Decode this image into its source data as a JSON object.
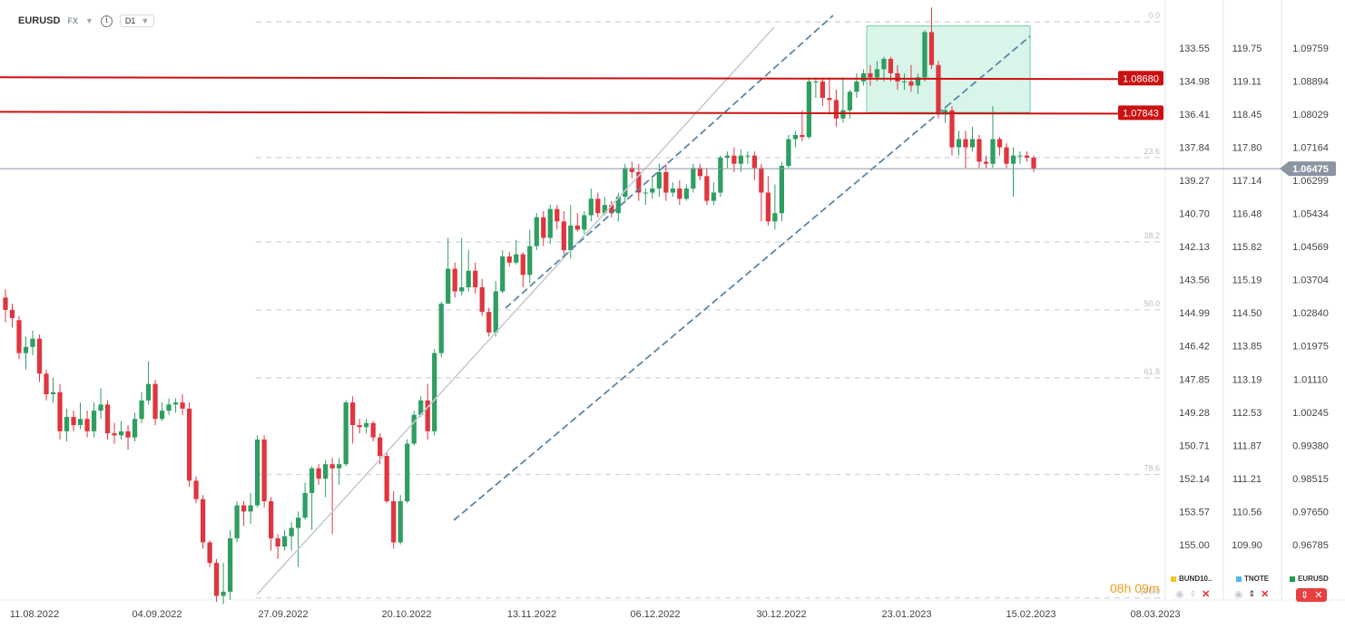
{
  "toolbar": {
    "symbol": "EURUSD",
    "market": "FX",
    "timeframe": "D1"
  },
  "chart_data": {
    "type": "candlestick",
    "symbol": "EURUSD",
    "timeframe": "D1",
    "ylim": [
      0.96,
      1.1025
    ],
    "y_ticks": [
      "1.09759",
      "1.08894",
      "1.08029",
      "1.07164",
      "1.06299",
      "1.05434",
      "1.04569",
      "1.03704",
      "1.02840",
      "1.01975",
      "1.01110",
      "1.00245",
      "0.99380",
      "0.98515",
      "0.97650",
      "0.96785"
    ],
    "ticks_secondary": [
      "119.75",
      "119.11",
      "118.45",
      "117.80",
      "117.14",
      "116.48",
      "115.82",
      "115.19",
      "114.50",
      "113.85",
      "113.19",
      "112.53",
      "111.87",
      "111.21",
      "110.56",
      "109.90"
    ],
    "ticks_tertiary": [
      "133.55",
      "134.98",
      "136.41",
      "137.84",
      "139.27",
      "140.70",
      "142.13",
      "143.56",
      "144.99",
      "146.42",
      "147.85",
      "149.28",
      "150.71",
      "152.14",
      "153.57",
      "155.00"
    ],
    "x_labels": [
      "11.08.2022",
      "04.09.2022",
      "27.09.2022",
      "20.10.2022",
      "13.11.2022",
      "06.12.2022",
      "30.12.2022",
      "23.01.2023",
      "15.02.2023",
      "08.03.2023"
    ],
    "last_price": "1.06475",
    "current_price": 1.0648,
    "horizontal_levels": [
      {
        "label": "1.08680",
        "value": 1.0868,
        "color": "#cc1010"
      },
      {
        "label": "1.07843",
        "value": 1.0784,
        "color": "#cc1010"
      }
    ],
    "fib_levels": [
      {
        "label": "0.0",
        "value": 1.1005
      },
      {
        "label": "23.6",
        "value": 1.0675
      },
      {
        "label": "38.2",
        "value": 1.047
      },
      {
        "label": "50.0",
        "value": 1.0305
      },
      {
        "label": "61.8",
        "value": 1.014
      },
      {
        "label": "78.6",
        "value": 0.9905
      },
      {
        "label": "100.0",
        "value": 0.9605
      }
    ],
    "candles": [
      [
        1.0335,
        1.0305,
        1.0355,
        1.0275
      ],
      [
        1.0305,
        1.0285,
        1.032,
        1.0262
      ],
      [
        1.028,
        1.02,
        1.029,
        1.0185
      ],
      [
        1.02,
        1.0215,
        1.024,
        1.016
      ],
      [
        1.0215,
        1.0235,
        1.0255,
        1.0195
      ],
      [
        1.0235,
        1.015,
        1.0245,
        1.013
      ],
      [
        1.015,
        1.01,
        1.016,
        1.0085
      ],
      [
        1.01,
        1.0105,
        1.014,
        1.008
      ],
      [
        1.0105,
        1.001,
        1.0125,
        0.999
      ],
      [
        1.001,
        1.0045,
        1.0065,
        0.9985
      ],
      [
        1.0045,
        1.0025,
        1.006,
        1.001
      ],
      [
        1.0025,
        1.004,
        1.008,
        1.0015
      ],
      [
        1.004,
        1.001,
        1.006,
        0.9995
      ],
      [
        1.001,
        1.006,
        1.008,
        0.9995
      ],
      [
        1.006,
        1.0075,
        1.0115,
        1.004
      ],
      [
        1.0075,
        1.0005,
        1.0085,
        0.999
      ],
      [
        1.0005,
        1.0,
        1.003,
        0.998
      ],
      [
        1.0,
        1.001,
        1.0035,
        0.999
      ],
      [
        1.001,
        0.9995,
        1.0025,
        0.9965
      ],
      [
        0.9995,
        1.004,
        1.0055,
        0.9985
      ],
      [
        1.004,
        1.0085,
        1.0105,
        1.003
      ],
      [
        1.0085,
        1.0125,
        1.018,
        1.0075
      ],
      [
        1.0125,
        1.004,
        1.0135,
        1.0025
      ],
      [
        1.004,
        1.006,
        1.008,
        1.0035
      ],
      [
        1.006,
        1.0075,
        1.009,
        1.005
      ],
      [
        1.0075,
        1.008,
        1.009,
        1.0055
      ],
      [
        1.008,
        1.0065,
        1.01,
        1.005
      ],
      [
        1.0065,
        0.989,
        1.008,
        0.9875
      ],
      [
        0.989,
        0.9845,
        0.99,
        0.9835
      ],
      [
        0.9845,
        0.974,
        0.9855,
        0.9725
      ],
      [
        0.974,
        0.969,
        0.9745,
        0.968
      ],
      [
        0.969,
        0.961,
        0.97,
        0.9595
      ],
      [
        0.961,
        0.962,
        0.969,
        0.959
      ],
      [
        0.962,
        0.975,
        0.977,
        0.96
      ],
      [
        0.975,
        0.983,
        0.984,
        0.974
      ],
      [
        0.983,
        0.9815,
        0.984,
        0.978
      ],
      [
        0.9815,
        0.983,
        0.986,
        0.9785
      ],
      [
        0.983,
        0.999,
        1.0,
        0.9825
      ],
      [
        0.999,
        0.984,
        1.0,
        0.9825
      ],
      [
        0.984,
        0.975,
        0.985,
        0.972
      ],
      [
        0.975,
        0.973,
        0.976,
        0.97
      ],
      [
        0.973,
        0.9755,
        0.977,
        0.972
      ],
      [
        0.9755,
        0.9775,
        0.979,
        0.972
      ],
      [
        0.9775,
        0.98,
        0.9815,
        0.968
      ],
      [
        0.98,
        0.986,
        0.9885,
        0.9795
      ],
      [
        0.986,
        0.992,
        0.9925,
        0.977
      ],
      [
        0.992,
        0.9895,
        0.993,
        0.988
      ],
      [
        0.9895,
        0.993,
        0.994,
        0.985
      ],
      [
        0.993,
        0.992,
        0.9945,
        0.976
      ],
      [
        0.992,
        0.993,
        0.9945,
        0.988
      ],
      [
        0.993,
        1.008,
        1.0085,
        0.9925
      ],
      [
        1.008,
        1.0025,
        1.0095,
        0.998
      ],
      [
        1.0025,
        1.002,
        1.004,
        1.0005
      ],
      [
        1.002,
        1.003,
        1.004,
        1.0005
      ],
      [
        1.003,
        0.9995,
        1.0035,
        0.9985
      ],
      [
        0.9995,
        0.995,
        1.0005,
        0.993
      ],
      [
        0.995,
        0.984,
        0.996,
        0.9835
      ],
      [
        0.984,
        0.974,
        0.9865,
        0.9725
      ],
      [
        0.974,
        0.984,
        0.9855,
        0.9735
      ],
      [
        0.984,
        0.998,
        0.999,
        0.9835
      ],
      [
        0.998,
        1.005,
        1.006,
        0.9975
      ],
      [
        1.005,
        1.0085,
        1.0095,
        1.0045
      ],
      [
        1.0085,
        1.001,
        1.0125,
        0.999
      ],
      [
        1.001,
        1.02,
        1.021,
        1.0
      ],
      [
        1.02,
        1.032,
        1.0325,
        1.019
      ],
      [
        1.032,
        1.0405,
        1.048,
        1.039
      ],
      [
        1.0405,
        1.035,
        1.042,
        1.0335
      ],
      [
        1.035,
        1.036,
        1.048,
        1.034
      ],
      [
        1.036,
        1.04,
        1.045,
        1.035
      ],
      [
        1.04,
        1.036,
        1.042,
        1.0345
      ],
      [
        1.036,
        1.03,
        1.038,
        1.029
      ],
      [
        1.03,
        1.025,
        1.031,
        1.024
      ],
      [
        1.025,
        1.035,
        1.0375,
        1.024
      ],
      [
        1.035,
        1.0435,
        1.045,
        1.0345
      ],
      [
        1.0435,
        1.042,
        1.0445,
        1.041
      ],
      [
        1.042,
        1.044,
        1.0475,
        1.0415
      ],
      [
        1.044,
        1.039,
        1.0445,
        1.036
      ],
      [
        1.039,
        1.046,
        1.05,
        1.037
      ],
      [
        1.046,
        1.053,
        1.054,
        1.045
      ],
      [
        1.053,
        1.048,
        1.0545,
        1.046
      ],
      [
        1.048,
        1.055,
        1.056,
        1.0465
      ],
      [
        1.055,
        1.052,
        1.056,
        1.05
      ],
      [
        1.052,
        1.045,
        1.0545,
        1.044
      ],
      [
        1.045,
        1.051,
        1.056,
        1.043
      ],
      [
        1.051,
        1.05,
        1.054,
        1.0495
      ],
      [
        1.05,
        1.0535,
        1.0545,
        1.049
      ],
      [
        1.0535,
        1.0575,
        1.06,
        1.052
      ],
      [
        1.0575,
        1.054,
        1.059,
        1.053
      ],
      [
        1.054,
        1.056,
        1.058,
        1.0535
      ],
      [
        1.056,
        1.054,
        1.057,
        1.053
      ],
      [
        1.054,
        1.058,
        1.059,
        1.052
      ],
      [
        1.058,
        1.065,
        1.066,
        1.0565
      ],
      [
        1.065,
        1.064,
        1.0665,
        1.0625
      ],
      [
        1.064,
        1.059,
        1.066,
        1.057
      ],
      [
        1.059,
        1.059,
        1.06,
        1.056
      ],
      [
        1.059,
        1.06,
        1.0625,
        1.0575
      ],
      [
        1.06,
        1.064,
        1.066,
        1.058
      ],
      [
        1.064,
        1.059,
        1.066,
        1.057
      ],
      [
        1.059,
        1.06,
        1.0615,
        1.058
      ],
      [
        1.06,
        1.0575,
        1.062,
        1.056
      ],
      [
        1.0575,
        1.06,
        1.061,
        1.057
      ],
      [
        1.06,
        1.065,
        1.066,
        1.059
      ],
      [
        1.065,
        1.063,
        1.066,
        1.062
      ],
      [
        1.063,
        1.057,
        1.065,
        1.056
      ],
      [
        1.057,
        1.059,
        1.0615,
        1.056
      ],
      [
        1.059,
        1.0675,
        1.068,
        1.058
      ],
      [
        1.0675,
        1.068,
        1.069,
        1.065
      ],
      [
        1.068,
        1.066,
        1.07,
        1.064
      ],
      [
        1.066,
        1.068,
        1.0695,
        1.064
      ],
      [
        1.068,
        1.068,
        1.069,
        1.066
      ],
      [
        1.068,
        1.065,
        1.069,
        1.062
      ],
      [
        1.065,
        1.059,
        1.066,
        1.052
      ],
      [
        1.059,
        1.052,
        1.063,
        1.051
      ],
      [
        1.052,
        1.054,
        1.061,
        1.05
      ],
      [
        1.054,
        1.0655,
        1.0665,
        1.052
      ],
      [
        1.0655,
        1.072,
        1.073,
        1.065
      ],
      [
        1.072,
        1.073,
        1.074,
        1.07
      ],
      [
        1.073,
        1.0725,
        1.079,
        1.0715
      ],
      [
        1.0725,
        1.086,
        1.087,
        1.072
      ],
      [
        1.086,
        1.086,
        1.087,
        1.082
      ],
      [
        1.086,
        1.082,
        1.087,
        1.08
      ],
      [
        1.082,
        1.0815,
        1.087,
        1.078
      ],
      [
        1.0815,
        1.077,
        1.084,
        1.075
      ],
      [
        1.077,
        1.079,
        1.087,
        1.076
      ],
      [
        1.079,
        1.0835,
        1.084,
        1.077
      ],
      [
        1.0835,
        1.086,
        1.088,
        1.082
      ],
      [
        1.086,
        1.088,
        1.089,
        1.085
      ],
      [
        1.088,
        1.087,
        1.09,
        1.085
      ],
      [
        1.087,
        1.089,
        1.091,
        1.086
      ],
      [
        1.089,
        1.0915,
        1.092,
        1.086
      ],
      [
        1.0915,
        1.088,
        1.092,
        1.086
      ],
      [
        1.088,
        1.086,
        1.09,
        1.084
      ],
      [
        1.086,
        1.086,
        1.088,
        1.084
      ],
      [
        1.086,
        1.085,
        1.09,
        1.0835
      ],
      [
        1.085,
        1.087,
        1.088,
        1.083
      ],
      [
        1.087,
        1.098,
        1.0985,
        1.086
      ],
      [
        1.098,
        1.09,
        1.104,
        1.089
      ],
      [
        1.09,
        1.078,
        1.091,
        1.077
      ],
      [
        1.078,
        1.079,
        1.08,
        1.076
      ],
      [
        1.079,
        1.07,
        1.08,
        1.068
      ],
      [
        1.07,
        1.072,
        1.074,
        1.068
      ],
      [
        1.072,
        1.07,
        1.074,
        1.065
      ],
      [
        1.07,
        1.072,
        1.075,
        1.069
      ],
      [
        1.072,
        1.0665,
        1.073,
        1.065
      ],
      [
        1.0665,
        1.066,
        1.068,
        1.065
      ],
      [
        1.066,
        1.072,
        1.08,
        1.065
      ],
      [
        1.072,
        1.07,
        1.0725,
        1.068
      ],
      [
        1.07,
        1.066,
        1.071,
        1.065
      ],
      [
        1.066,
        1.068,
        1.07,
        1.058
      ],
      [
        1.068,
        1.068,
        1.069,
        1.066
      ],
      [
        1.068,
        1.0675,
        1.069,
        1.0665
      ],
      [
        1.0675,
        1.0648,
        1.068,
        1.064
      ]
    ]
  },
  "countdown": "08h 09m",
  "legend": [
    {
      "name": "BUND10..",
      "color": "#f3c623"
    },
    {
      "name": "TNOTE",
      "color": "#4db8e8"
    },
    {
      "name": "EURUSD",
      "color": "#1f9d55"
    }
  ]
}
